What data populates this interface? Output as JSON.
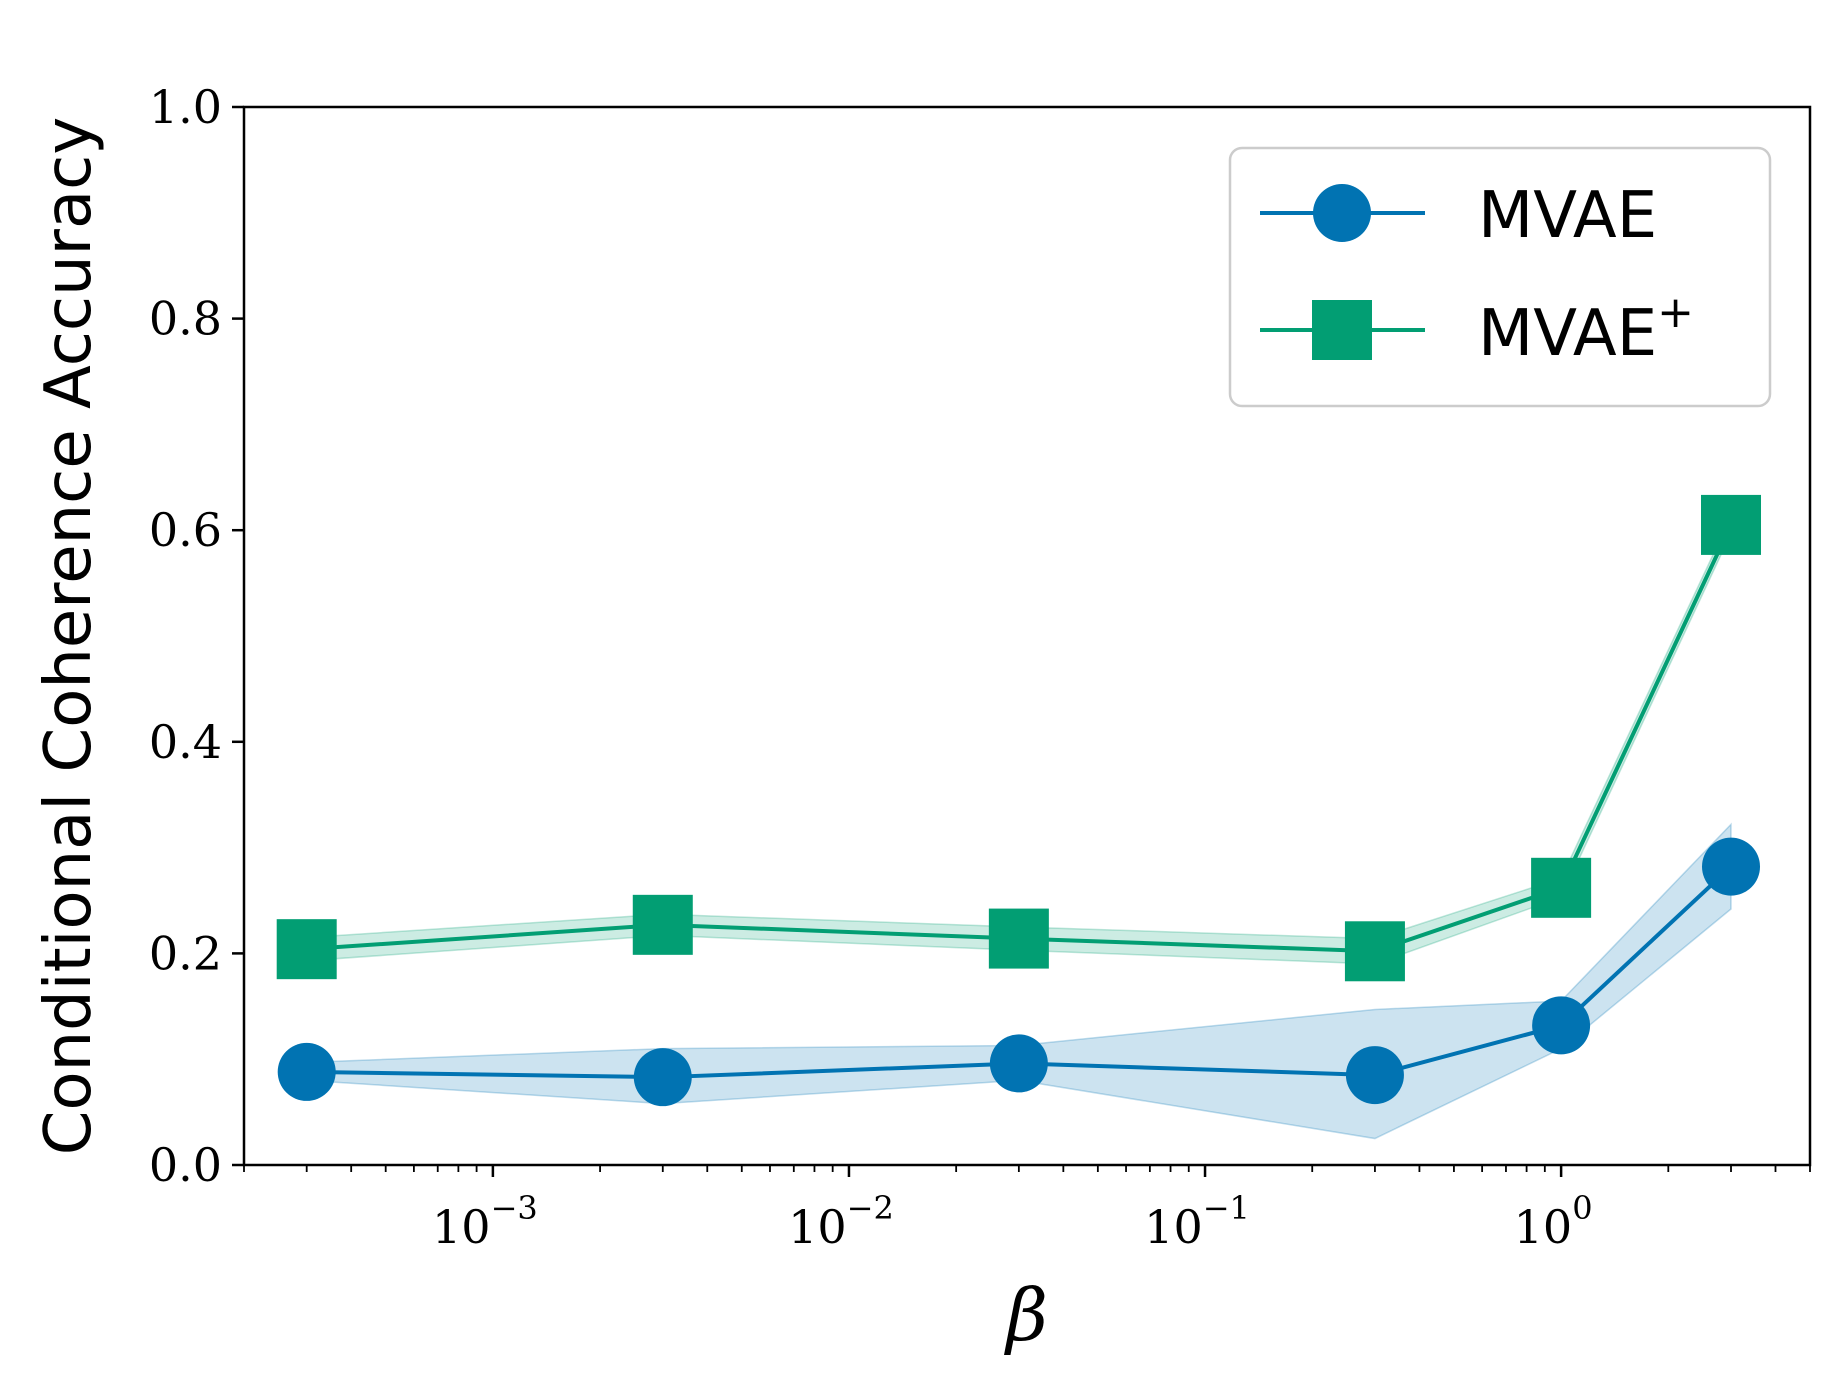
{
  "chart_data": {
    "type": "line",
    "title": "",
    "xlabel": "β",
    "ylabel": "Conditional Coherence Accuracy",
    "x_scale": "log",
    "xlim": [
      0.0002,
      5
    ],
    "ylim": [
      0.0,
      1.0
    ],
    "yticks": [
      0.0,
      0.2,
      0.4,
      0.6,
      0.8,
      1.0
    ],
    "ytick_labels": [
      "0.0",
      "0.2",
      "0.4",
      "0.6",
      "0.8",
      "1.0"
    ],
    "xticks": [
      {
        "value": 0.001,
        "base": "10",
        "exp": "−3"
      },
      {
        "value": 0.01,
        "base": "10",
        "exp": "−2"
      },
      {
        "value": 0.1,
        "base": "10",
        "exp": "−1"
      },
      {
        "value": 1,
        "base": "10",
        "exp": "0"
      }
    ],
    "x": [
      0.0003,
      0.003,
      0.03,
      0.3,
      1,
      3
    ],
    "grid": false,
    "legend_position": "top-right",
    "series": [
      {
        "name": "MVAE",
        "marker": "circle",
        "color": "#0173b2",
        "values": [
          0.088,
          0.083,
          0.096,
          0.085,
          0.132,
          0.282
        ],
        "lower": [
          0.08,
          0.058,
          0.08,
          0.025,
          0.11,
          0.242
        ],
        "upper": [
          0.097,
          0.11,
          0.113,
          0.147,
          0.155,
          0.322
        ]
      },
      {
        "name": "MVAE",
        "name_sup": "+",
        "marker": "square",
        "color": "#029e73",
        "values": [
          0.204,
          0.227,
          0.214,
          0.202,
          0.262,
          0.605
        ],
        "lower": [
          0.193,
          0.217,
          0.203,
          0.19,
          0.253,
          0.597
        ],
        "upper": [
          0.215,
          0.237,
          0.225,
          0.214,
          0.271,
          0.613
        ]
      }
    ]
  }
}
